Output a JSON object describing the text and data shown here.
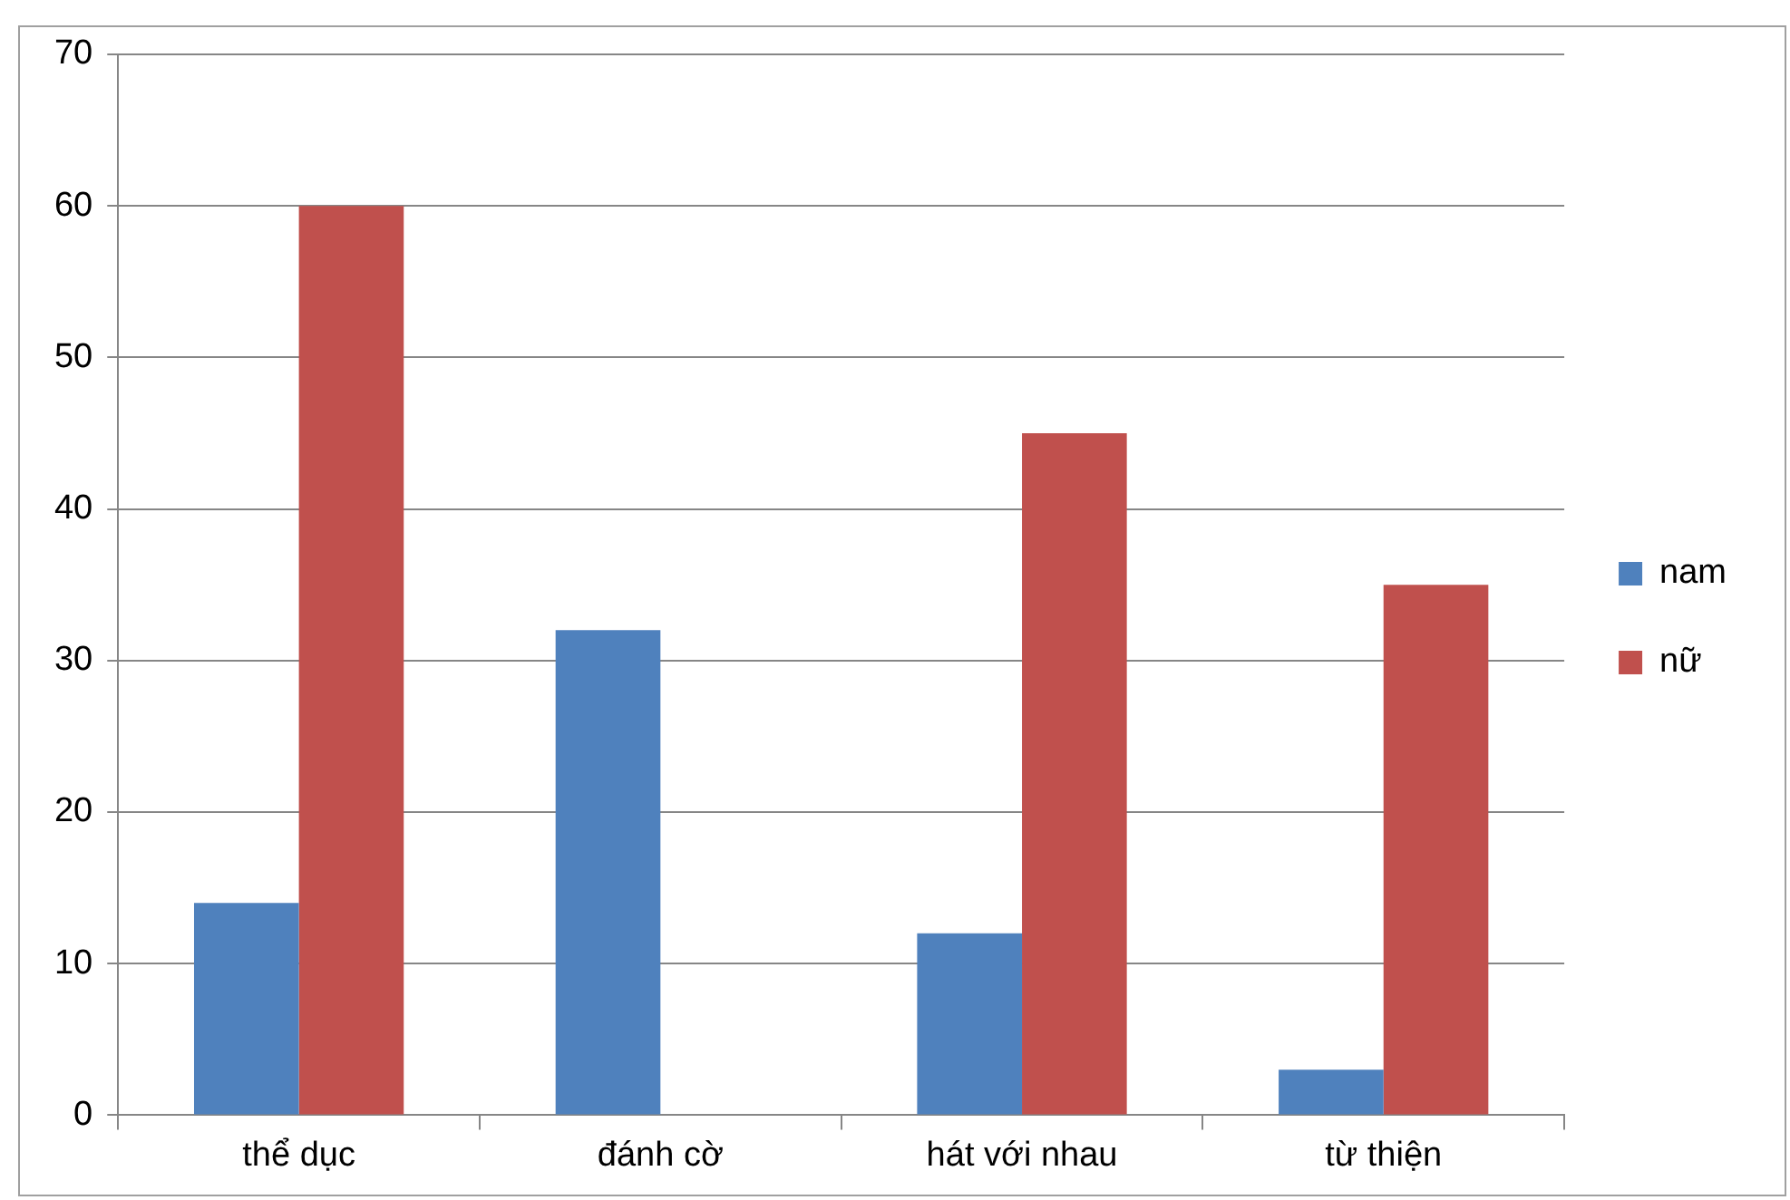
{
  "chart_data": {
    "type": "bar",
    "categories": [
      "thể dục",
      "đánh cờ",
      "hát với nhau",
      "từ thiện"
    ],
    "series": [
      {
        "name": "nam",
        "color": "#4f81bd",
        "values": [
          14,
          32,
          12,
          3
        ]
      },
      {
        "name": "nữ",
        "color": "#c0504d",
        "values": [
          60,
          0,
          45,
          35
        ]
      }
    ],
    "ylim": [
      0,
      70
    ],
    "yticks": [
      0,
      10,
      20,
      30,
      40,
      50,
      60,
      70
    ],
    "grid": "y",
    "legend": "right"
  }
}
